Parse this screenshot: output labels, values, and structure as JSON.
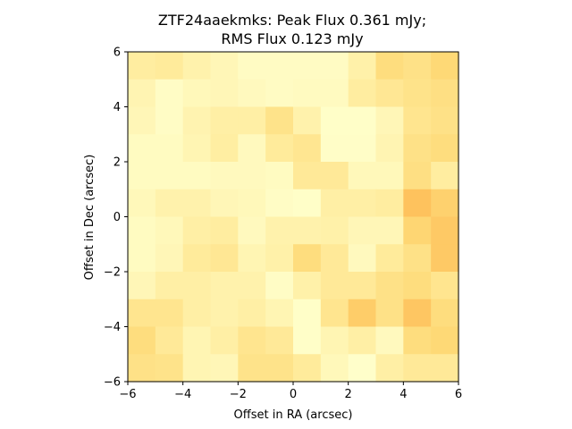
{
  "chart_data": {
    "type": "heatmap",
    "title_line1": "ZTF24aaekmks: Peak Flux 0.361 mJy;",
    "title_line2": "RMS Flux 0.123 mJy",
    "xlabel": "Offset in RA (arcsec)",
    "ylabel": "Offset in Dec (arcsec)",
    "xlim": [
      -6,
      6
    ],
    "ylim": [
      -6,
      6
    ],
    "xticks": [
      -6,
      -4,
      -2,
      0,
      2,
      4,
      6
    ],
    "yticks": [
      -6,
      -4,
      -2,
      0,
      2,
      4,
      6
    ],
    "tick_labels_x": [
      "−6",
      "−4",
      "−2",
      "0",
      "2",
      "4",
      "6"
    ],
    "tick_labels_y": [
      "−6",
      "−4",
      "−2",
      "0",
      "2",
      "4",
      "6"
    ],
    "colormap": [
      "#ffffcc",
      "#ffeda0",
      "#fed976",
      "#feb24c",
      "#fd8d3c"
    ],
    "value_range": [
      0,
      1
    ],
    "grid": false,
    "rows_top_to_bottom": [
      [
        0.25,
        0.28,
        0.18,
        0.12,
        0.05,
        0.05,
        0.05,
        0.05,
        0.2,
        0.45,
        0.4,
        0.5
      ],
      [
        0.15,
        0.04,
        0.1,
        0.12,
        0.08,
        0.05,
        0.07,
        0.07,
        0.25,
        0.32,
        0.38,
        0.42
      ],
      [
        0.12,
        0.04,
        0.16,
        0.22,
        0.22,
        0.38,
        0.18,
        0.02,
        0.02,
        0.12,
        0.35,
        0.4
      ],
      [
        0.06,
        0.06,
        0.14,
        0.24,
        0.08,
        0.28,
        0.34,
        0.03,
        0.03,
        0.15,
        0.4,
        0.45
      ],
      [
        0.06,
        0.06,
        0.06,
        0.08,
        0.08,
        0.06,
        0.3,
        0.3,
        0.1,
        0.1,
        0.42,
        0.25
      ],
      [
        0.1,
        0.18,
        0.18,
        0.12,
        0.1,
        0.04,
        0.02,
        0.22,
        0.22,
        0.25,
        0.65,
        0.55
      ],
      [
        0.06,
        0.1,
        0.22,
        0.25,
        0.08,
        0.18,
        0.18,
        0.2,
        0.12,
        0.12,
        0.52,
        0.6
      ],
      [
        0.06,
        0.12,
        0.28,
        0.32,
        0.14,
        0.2,
        0.45,
        0.3,
        0.08,
        0.28,
        0.4,
        0.6
      ],
      [
        0.12,
        0.22,
        0.22,
        0.18,
        0.18,
        0.04,
        0.2,
        0.3,
        0.3,
        0.4,
        0.45,
        0.35
      ],
      [
        0.35,
        0.35,
        0.22,
        0.18,
        0.22,
        0.14,
        0.02,
        0.35,
        0.58,
        0.4,
        0.62,
        0.45
      ],
      [
        0.45,
        0.3,
        0.14,
        0.22,
        0.35,
        0.3,
        0.02,
        0.14,
        0.22,
        0.08,
        0.45,
        0.5
      ],
      [
        0.4,
        0.38,
        0.14,
        0.12,
        0.38,
        0.38,
        0.28,
        0.1,
        0.01,
        0.22,
        0.3,
        0.3
      ]
    ]
  }
}
